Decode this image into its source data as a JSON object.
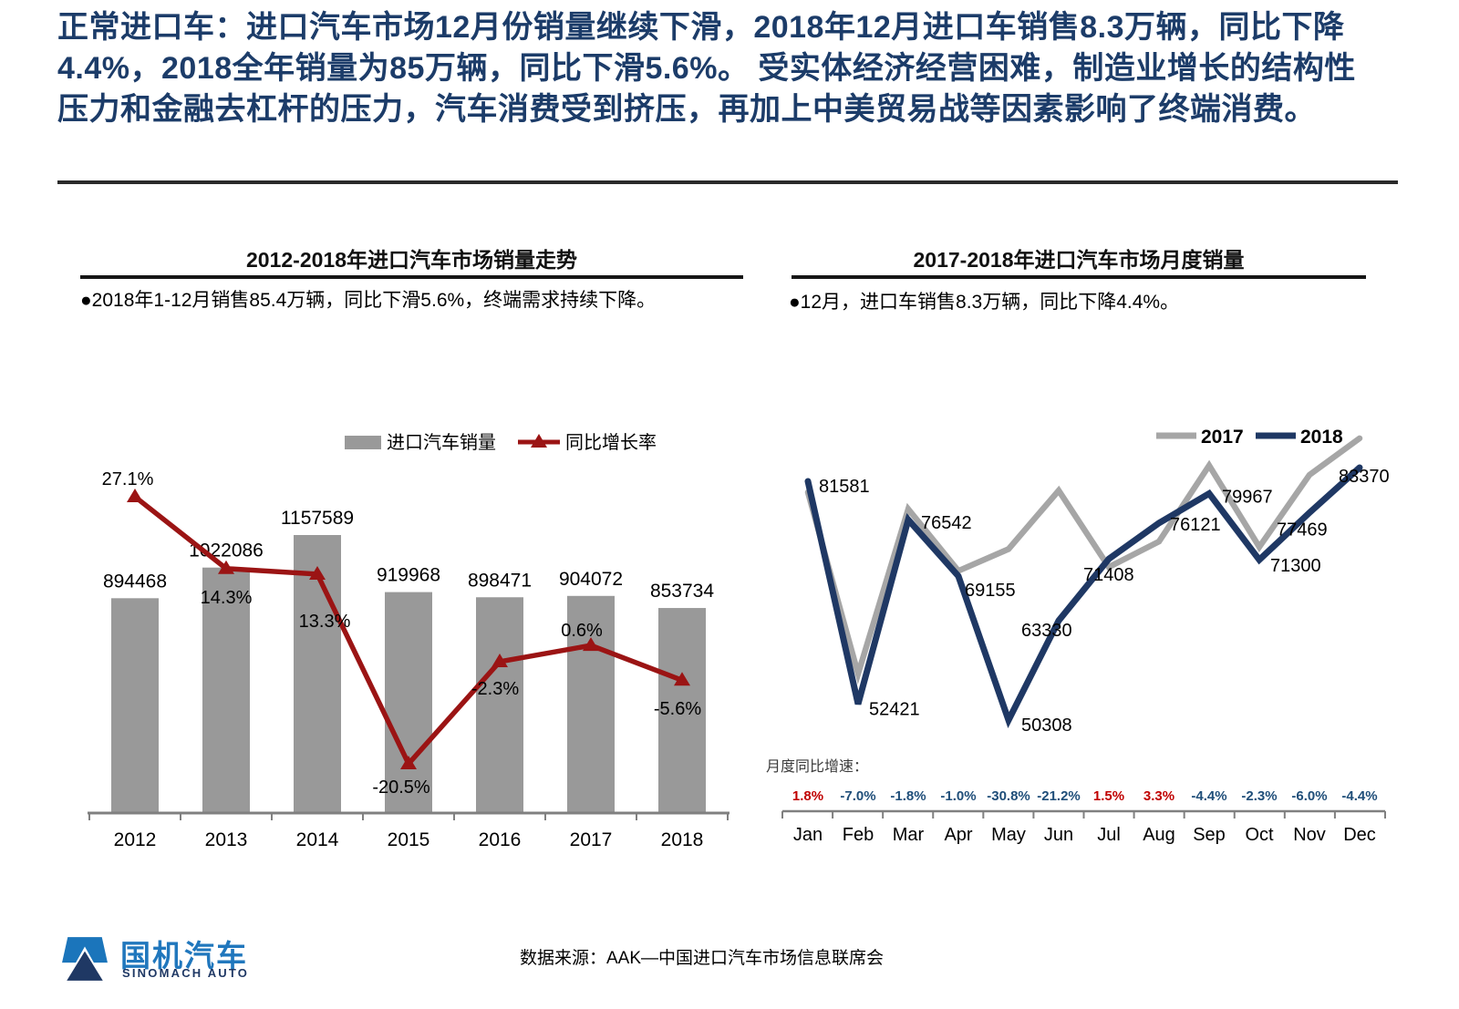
{
  "header": {
    "text": "正常进口车：进口汽车市场12月份销量继续下滑，2018年12月进口车销售8.3万辆，同比下降4.4%，2018全年销量为85万辆，同比下滑5.6%。 受实体经济经营困难，制造业增长的结构性压力和金融去杠杆的压力，汽车消费受到挤压，再加上中美贸易战等因素影响了终端消费。"
  },
  "left_panel": {
    "title": "2012-2018年进口汽车市场销量走势",
    "bullet": "●2018年1-12月销售85.4万辆，同比下滑5.6%，终端需求持续下降。"
  },
  "right_panel": {
    "title": "2017-2018年进口汽车市场月度销量",
    "bullet": "●12月，进口车销售8.3万辆，同比下降4.4%。"
  },
  "chart_data": [
    {
      "type": "bar",
      "subtype": "bar-line-combo",
      "title": "2012-2018年进口汽车市场销量走势",
      "categories": [
        "2012",
        "2013",
        "2014",
        "2015",
        "2016",
        "2017",
        "2018"
      ],
      "bar_series": {
        "name": "进口汽车销量",
        "color": "#999999",
        "values": [
          894468,
          1022086,
          1157589,
          919968,
          898471,
          904072,
          853734
        ],
        "labels": [
          "894468",
          "1022086",
          "1157589",
          "919968",
          "898471",
          "904072",
          "853734"
        ]
      },
      "line_series": {
        "name": "同比增长率",
        "color": "#9B1414",
        "values_pct": [
          27.1,
          14.3,
          13.3,
          -20.5,
          -2.3,
          0.6,
          -5.6
        ],
        "labels": [
          "27.1%",
          "14.3%",
          "13.3%",
          "-20.5%",
          "-2.3%",
          "0.6%",
          "-5.6%"
        ]
      },
      "legend_position": "top",
      "grid": false,
      "axis_color": "#808080"
    },
    {
      "type": "line",
      "title": "2017-2018年进口汽车市场月度销量",
      "categories": [
        "Jan",
        "Feb",
        "Mar",
        "Apr",
        "May",
        "Jun",
        "Jul",
        "Aug",
        "Sep",
        "Oct",
        "Nov",
        "Dec"
      ],
      "series": [
        {
          "name": "2017",
          "color": "#A6A6A6",
          "estimated_from_yoy": true,
          "values": [
            80138,
            56367,
            77945,
            69853,
            72700,
            80368,
            70352,
            73689,
            83647,
            72978,
            82414,
            87207
          ]
        },
        {
          "name": "2018",
          "color": "#1F3864",
          "values": [
            81581,
            52421,
            76542,
            69155,
            50308,
            63330,
            71408,
            76121,
            79967,
            71300,
            77469,
            83370
          ],
          "labels": [
            "81581",
            "52421",
            "76542",
            "69155",
            "50308",
            "63330",
            "71408",
            "76121",
            "79967",
            "71300",
            "77469",
            "83370"
          ]
        }
      ],
      "yoy_row": {
        "label": "月度同比增速：",
        "values": [
          "1.8%",
          "-7.0%",
          "-1.8%",
          "-1.0%",
          "-30.8%",
          "-21.2%",
          "1.5%",
          "3.3%",
          "-4.4%",
          "-2.3%",
          "-6.0%",
          "-4.4%"
        ],
        "positive_color": "#C00000",
        "negative_color": "#1F4E79"
      },
      "legend_position": "top-right",
      "grid": false,
      "ylim": [
        48000,
        90000
      ],
      "axis_color": "#808080"
    }
  ],
  "footer": {
    "logo_text": "国机汽车",
    "logo_subtext": "SINOMACH AUTO",
    "source": "数据来源：AAK—中国进口汽车市场信息联席会"
  },
  "colors": {
    "header_text": "#1C3C69",
    "bar_gray": "#999999",
    "growth_line_red": "#9B1414",
    "line_2017_gray": "#A6A6A6",
    "line_2018_navy": "#1F3864",
    "yoy_positive": "#C00000",
    "yoy_negative": "#1F4E79"
  }
}
